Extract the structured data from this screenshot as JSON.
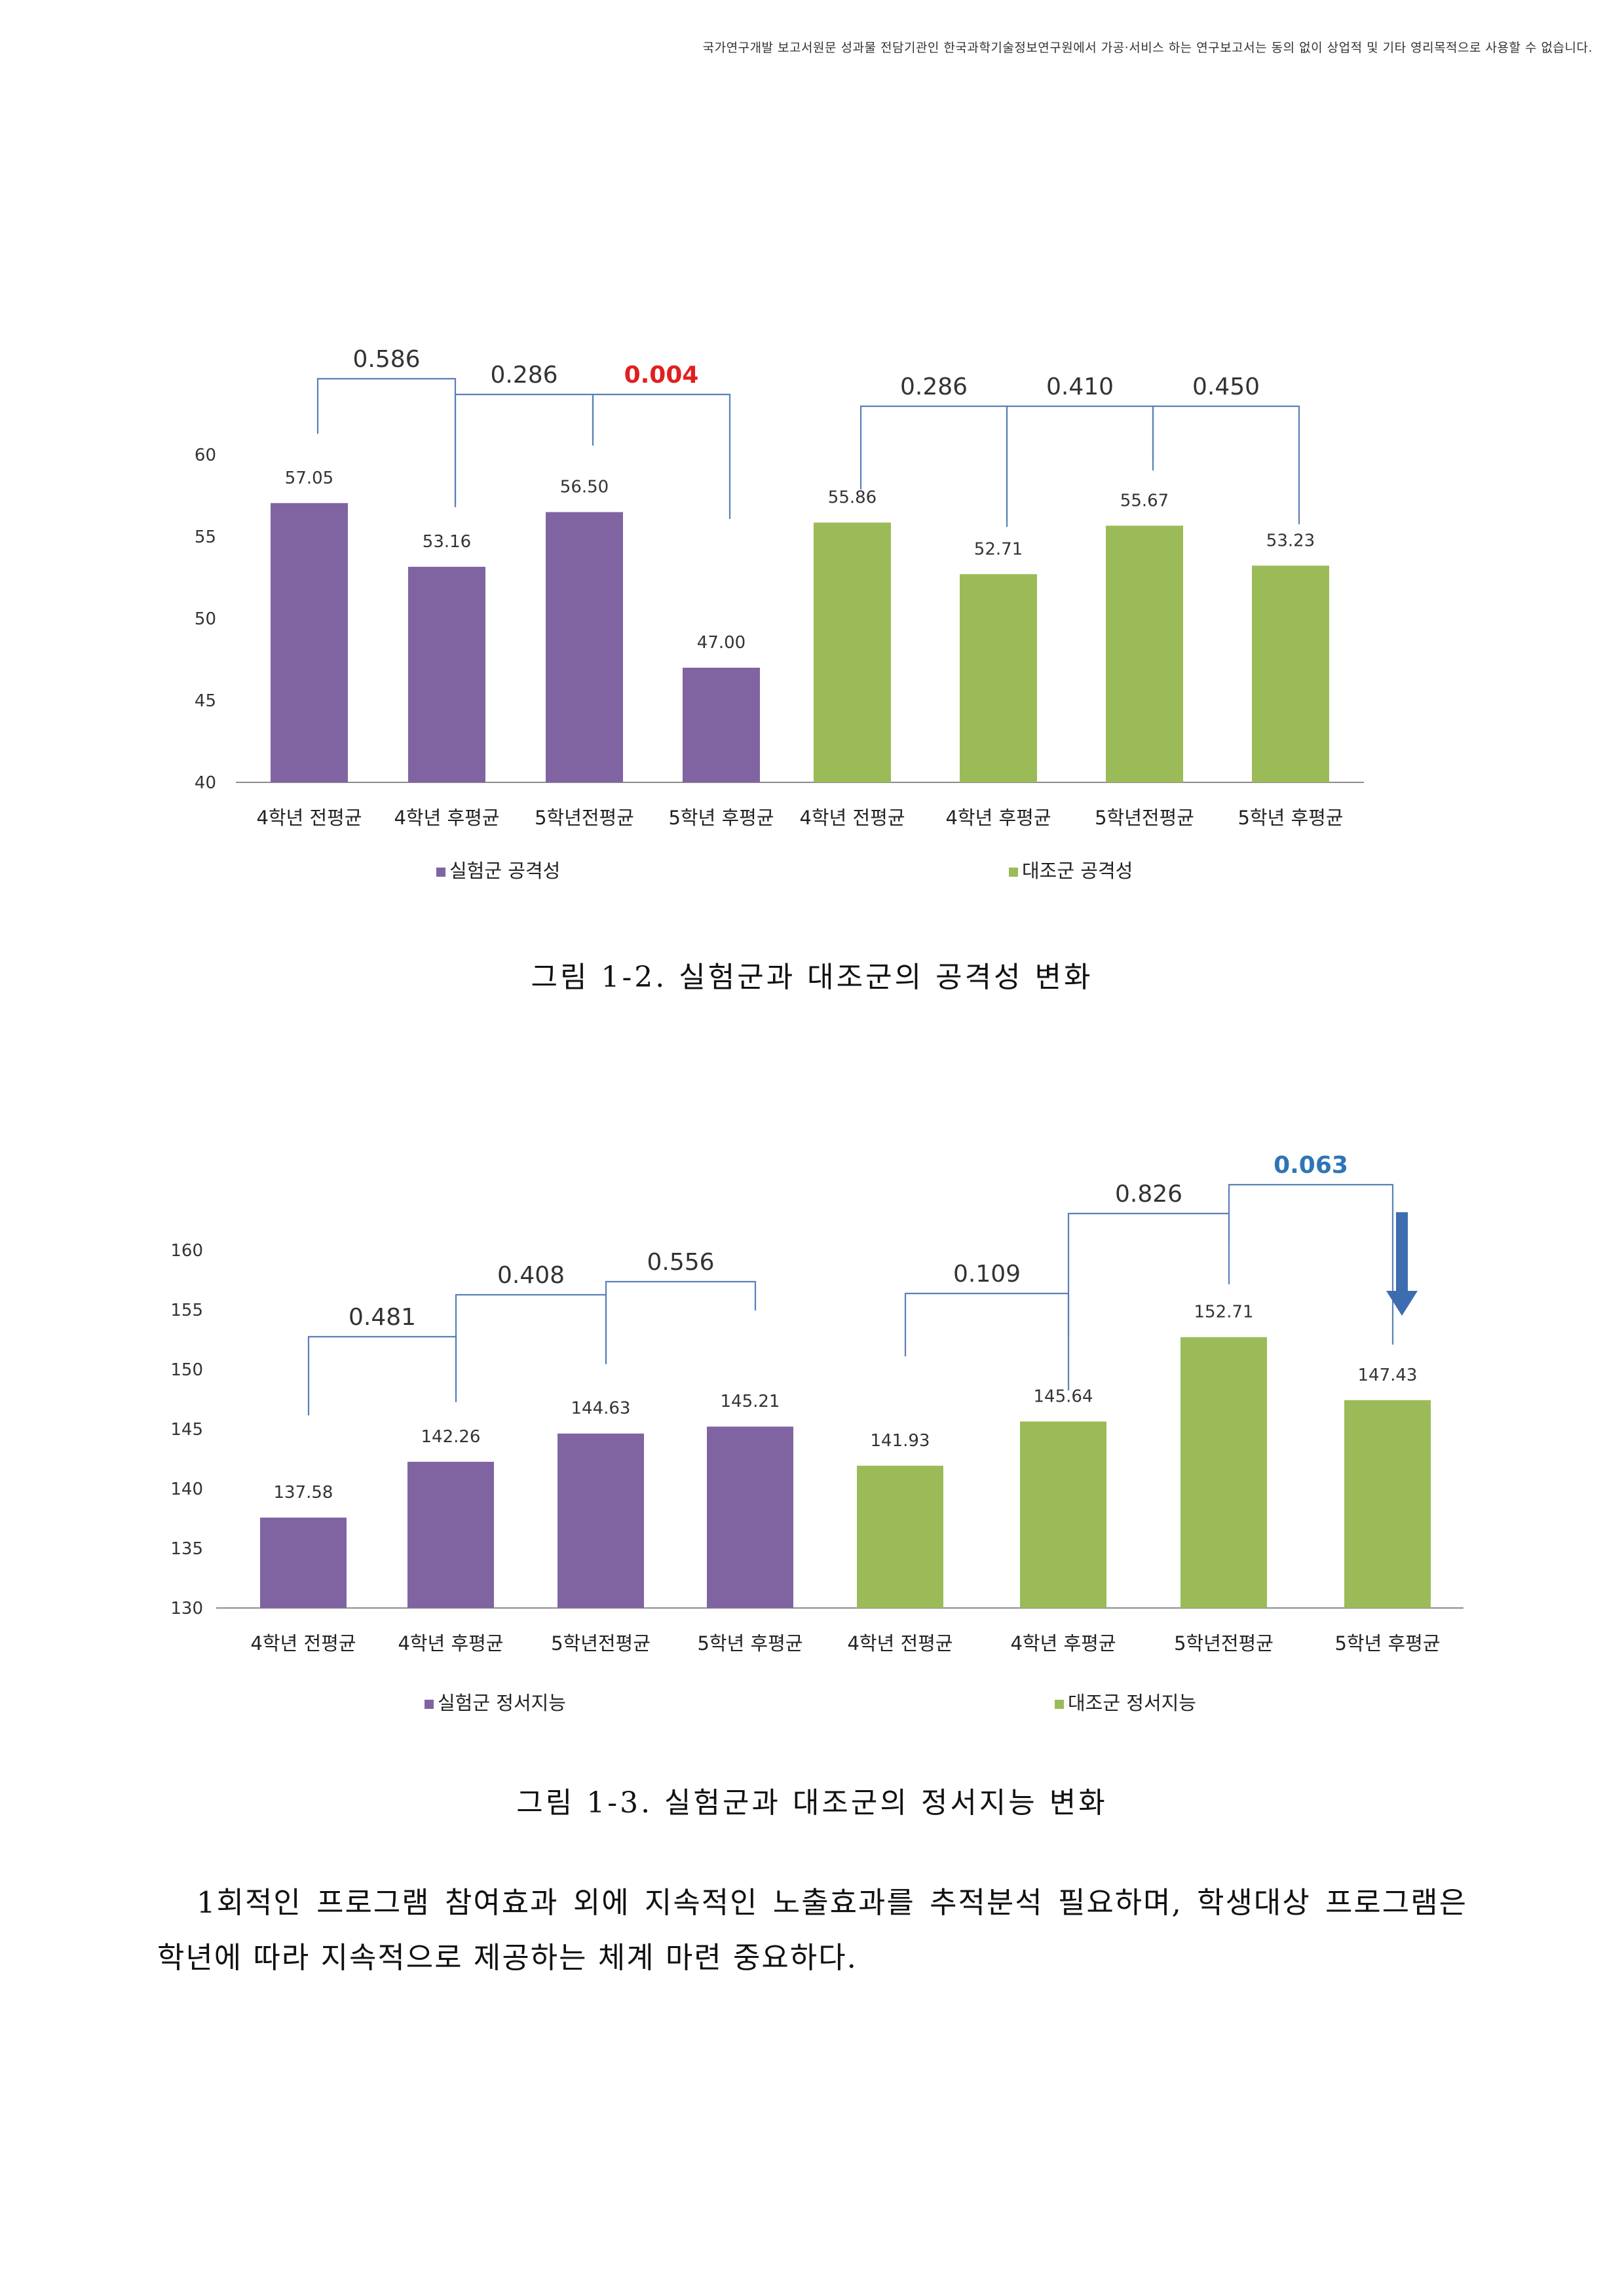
{
  "header": {
    "notice": "국가연구개발 보고서원문 성과물 전담기관인 한국과학기술정보연구원에서 가공·서비스 하는 연구보고서는 동의 없이 상업적 및 기타 영리목적으로 사용할 수 없습니다."
  },
  "chart_data": [
    {
      "type": "bar",
      "categories": [
        "4학년 전평균",
        "4학년 후평균",
        "5학년전평균",
        "5학년 후평균",
        "4학년 전평균",
        "4학년 후평균",
        "5학년전평균",
        "5학년 후평균"
      ],
      "values": [
        57.05,
        53.16,
        56.5,
        47.0,
        55.86,
        52.71,
        55.67,
        53.23
      ],
      "value_labels": [
        "57.05",
        "53.16",
        "56.50",
        "47.00",
        "55.86",
        "52.71",
        "55.67",
        "53.23"
      ],
      "series": [
        {
          "name": "실험군 공격성",
          "indices": [
            0,
            1,
            2,
            3
          ],
          "color": "#8064A2"
        },
        {
          "name": "대조군 공격성",
          "indices": [
            4,
            5,
            6,
            7
          ],
          "color": "#9BBB59"
        }
      ],
      "ylim": [
        40,
        60
      ],
      "yticks": [
        "40",
        "45",
        "50",
        "55",
        "60"
      ],
      "grid": false,
      "legend": "bottom",
      "brackets": [
        {
          "from": 0,
          "to": 1,
          "label": "0.586",
          "color": "#333333",
          "bold": false
        },
        {
          "from": 1,
          "to": 2,
          "label": "0.286",
          "color": "#333333",
          "bold": false
        },
        {
          "from": 2,
          "to": 3,
          "label": "0.004",
          "color": "#E02020",
          "bold": true
        },
        {
          "from": 4,
          "to": 5,
          "label": "0.286",
          "color": "#333333",
          "bold": false
        },
        {
          "from": 5,
          "to": 6,
          "label": "0.410",
          "color": "#333333",
          "bold": false
        },
        {
          "from": 6,
          "to": 7,
          "label": "0.450",
          "color": "#333333",
          "bold": false
        }
      ],
      "caption": "그림 1-2. 실험군과 대조군의 공격성 변화"
    },
    {
      "type": "bar",
      "categories": [
        "4학년 전평균",
        "4학년 후평균",
        "5학년전평균",
        "5학년 후평균",
        "4학년 전평균",
        "4학년 후평균",
        "5학년전평균",
        "5학년 후평균"
      ],
      "values": [
        137.58,
        142.26,
        144.63,
        145.21,
        141.93,
        145.64,
        152.71,
        147.43
      ],
      "value_labels": [
        "137.58",
        "142.26",
        "144.63",
        "145.21",
        "141.93",
        "145.64",
        "152.71",
        "147.43"
      ],
      "series": [
        {
          "name": "실험군 정서지능",
          "indices": [
            0,
            1,
            2,
            3
          ],
          "color": "#8064A2"
        },
        {
          "name": "대조군 정서지능",
          "indices": [
            4,
            5,
            6,
            7
          ],
          "color": "#9BBB59"
        }
      ],
      "ylim": [
        130,
        160
      ],
      "yticks": [
        "130",
        "135",
        "140",
        "145",
        "150",
        "155",
        "160"
      ],
      "grid": false,
      "legend": "bottom",
      "brackets": [
        {
          "from": 0,
          "to": 1,
          "label": "0.481",
          "color": "#333333",
          "bold": false
        },
        {
          "from": 1,
          "to": 2,
          "label": "0.408",
          "color": "#333333",
          "bold": false
        },
        {
          "from": 2,
          "to": 3,
          "label": "0.556",
          "color": "#333333",
          "bold": false
        },
        {
          "from": 4,
          "to": 5,
          "label": "0.109",
          "color": "#333333",
          "bold": false
        },
        {
          "from": 5,
          "to": 6,
          "label": "0.826",
          "color": "#333333",
          "bold": false
        },
        {
          "from": 6,
          "to": 7,
          "label": "0.063",
          "color": "#2E75B6",
          "bold": true
        }
      ],
      "annotation": {
        "type": "down-arrow",
        "target_index": 7,
        "color": "#3E6CB0"
      },
      "caption": "그림 1-3. 실험군과 대조군의 정서지능 변화"
    }
  ],
  "body": {
    "paragraph": "1회적인 프로그램 참여효과 외에 지속적인 노출효과를 추적분석 필요하며, 학생대상 프로그램은 학년에 따라 지속적으로 제공하는 체계 마련 중요하다."
  }
}
